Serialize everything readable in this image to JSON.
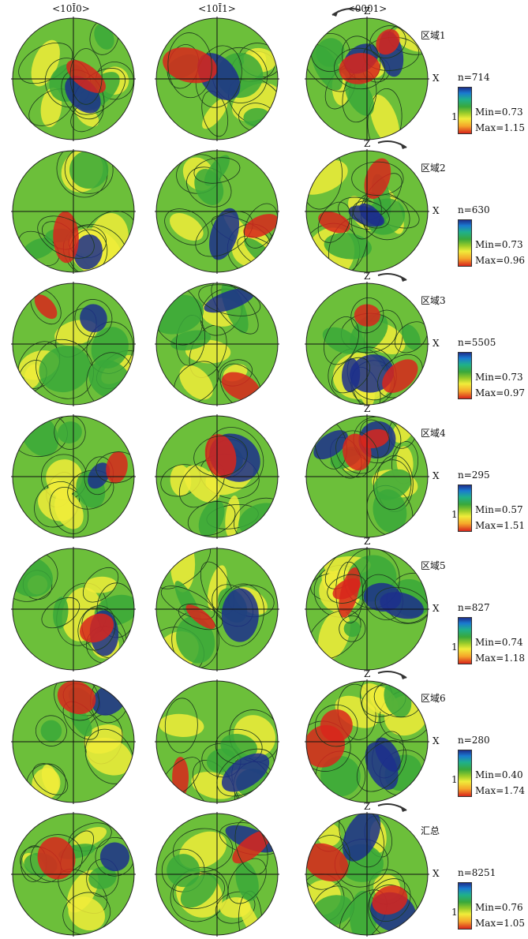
{
  "columns": [
    "<10Ī0>",
    "<10Ī1>",
    "<0001>"
  ],
  "axes": {
    "z": "Z",
    "x": "X"
  },
  "rows": [
    {
      "label": "区域1",
      "n": "n=714",
      "min": "Min=0.73",
      "max": "Max=1.15",
      "one": "1",
      "arrow": "left"
    },
    {
      "label": "区域2",
      "n": "n=630",
      "min": "Min=0.73",
      "max": "Max=0.96",
      "one": "",
      "arrow": "right"
    },
    {
      "label": "区域3",
      "n": "n=5505",
      "min": "Min=0.73",
      "max": "Max=0.97",
      "one": "",
      "arrow": "right"
    },
    {
      "label": "区域4",
      "n": "n=295",
      "min": "Min=0.57",
      "max": "Max=1.51",
      "one": "1",
      "arrow": "none"
    },
    {
      "label": "区域5",
      "n": "n=827",
      "min": "Min=0.74",
      "max": "Max=1.18",
      "one": "1",
      "arrow": "none"
    },
    {
      "label": "区域6",
      "n": "n=280",
      "min": "Min=0.40",
      "max": "Max=1.74",
      "one": "1",
      "arrow": "right"
    },
    {
      "label": "汇总",
      "n": "n=8251",
      "min": "Min=0.76",
      "max": "Max=1.05",
      "one": "1",
      "arrow": "right"
    }
  ],
  "colors": {
    "low": "#1c2f8c",
    "mid": "#3aa83a",
    "high_mid": "#f0ec3a",
    "high": "#d8261c",
    "base": "#6cbf3a"
  }
}
